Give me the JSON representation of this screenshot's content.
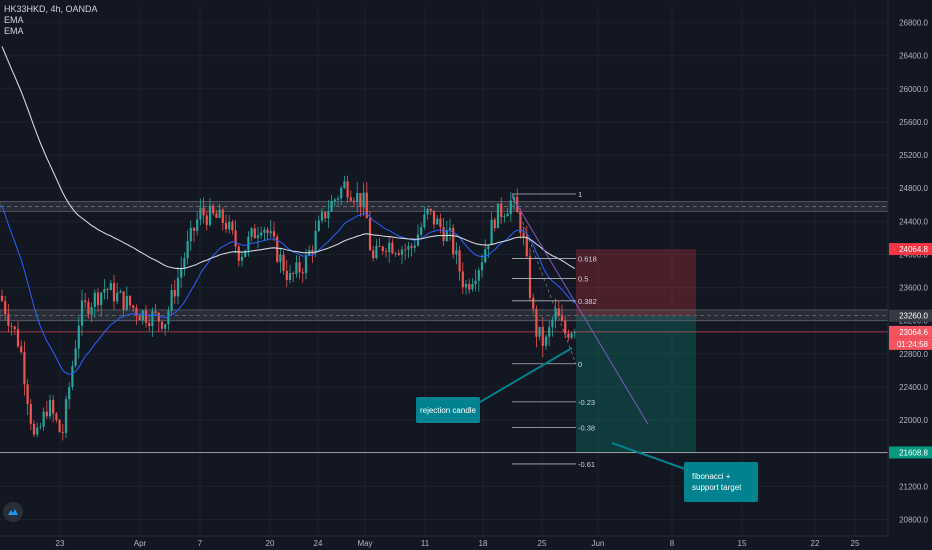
{
  "chart_data": {
    "type": "candlestick",
    "symbol_title": "HK33HKD, 4h, OANDA",
    "indicators": [
      "EMA",
      "EMA"
    ],
    "x_ticks": [
      "23",
      "Apr",
      "7",
      "20",
      "24",
      "May",
      "11",
      "18",
      "25",
      "Jun",
      "8",
      "15",
      "22",
      "25"
    ],
    "y_ticks": [
      26800,
      26400,
      26000,
      25600,
      25200,
      24800,
      24400,
      24000,
      23600,
      23200,
      22800,
      22400,
      22000,
      21600,
      21200,
      20800
    ],
    "ylim": [
      20600,
      27000
    ],
    "price_tags": [
      {
        "label": "24064.8",
        "value": 24064.8,
        "color": "#f23645"
      },
      {
        "label": "23260.0",
        "value": 23260.0,
        "color": "#363a45"
      },
      {
        "label": "23064.6",
        "value": 23064.6,
        "color": "#f7525f"
      },
      {
        "label": "01:24:58",
        "value": 22920,
        "color": "#f7525f"
      },
      {
        "label": "21608.8",
        "value": 21608.8,
        "color": "#089981"
      }
    ],
    "fib_levels": [
      {
        "label": "1",
        "value": 24730
      },
      {
        "label": "0.618",
        "value": 23950
      },
      {
        "label": "0.5",
        "value": 23710
      },
      {
        "label": "0.382",
        "value": 23440
      },
      {
        "label": "0",
        "value": 22680
      },
      {
        "label": "-0.23",
        "value": 22220
      },
      {
        "label": "-0.38",
        "value": 21910
      },
      {
        "label": "-0.61",
        "value": 21470
      }
    ],
    "resistance_zones": [
      [
        24520,
        24640
      ],
      [
        23200,
        23330
      ]
    ],
    "support_line": 21608.8,
    "position": {
      "entry": 23260.0,
      "stop": 24064.8,
      "target": 21608.8
    },
    "annotations": [
      {
        "text": "rejection candle"
      },
      {
        "text": "fibonacci + support target"
      }
    ],
    "colors": {
      "up": "#26a69a",
      "down": "#ef5350",
      "ema_fast": "#2962ff",
      "ema_slow": "#d1d4dc",
      "trend": "#7e57c2",
      "callout": "#00838f"
    }
  }
}
